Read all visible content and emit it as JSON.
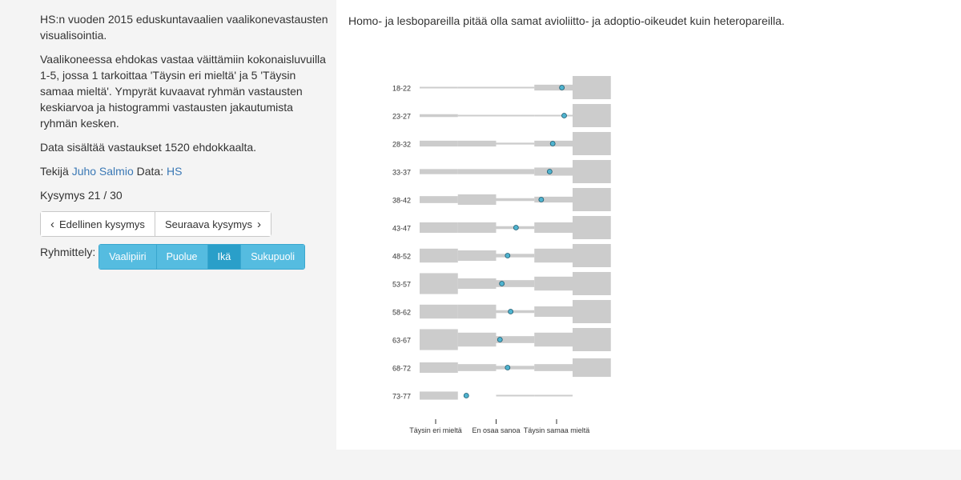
{
  "intro": {
    "title": "HS:n vuoden 2015 eduskuntavaalien vaalikonevastausten visualisointia.",
    "description": "Vaalikoneessa ehdokas vastaa väittämiin kokonaisluvuilla 1-5, jossa 1 tarkoittaa 'Täysin eri mieltä' ja 5 'Täysin samaa mieltä'. Ympyrät kuvaavat ryhmän vastausten keskiarvoa ja histogrammi vastausten jakautumista ryhmän kesken.",
    "data_note": "Data sisältää vastaukset 1520 ehdokkaalta.",
    "author_prefix": "Tekijä",
    "author_name": "Juho Salmio",
    "data_prefix": "Data:",
    "data_source": "HS"
  },
  "question_counter": "Kysymys 21 / 30",
  "nav": {
    "prev_label": "Edellinen kysymys",
    "next_label": "Seuraava kysymys"
  },
  "grouping": {
    "label": "Ryhmittely:",
    "options": [
      "Vaalipiiri",
      "Puolue",
      "Ikä",
      "Sukupuoli"
    ],
    "active": "Ikä"
  },
  "question_text": "Homo- ja lesbopareilla pitää olla samat avioliitto- ja adoptio-oikeudet kuin heteropareilla.",
  "colors": {
    "accent": "#55bce0",
    "accent_active": "#2a9fc9",
    "histogram": "#cccccc",
    "mean_dot": "#4fb3cf"
  },
  "chart_data": {
    "type": "histogram",
    "x_scale": [
      1,
      5
    ],
    "x_ticks": [
      {
        "value": 1,
        "label": "Täysin eri mieltä"
      },
      {
        "value": 3,
        "label": "En osaa sanoa"
      },
      {
        "value": 5,
        "label": "Täysin samaa mieltä"
      }
    ],
    "groups": [
      {
        "label": "18-22",
        "mean": 4.72,
        "distribution": [
          0.06,
          0.06,
          0.06,
          0.25,
          1.0
        ]
      },
      {
        "label": "23-27",
        "mean": 4.78,
        "distribution": [
          0.12,
          0.04,
          0.04,
          0.04,
          1.0
        ]
      },
      {
        "label": "28-32",
        "mean": 4.48,
        "distribution": [
          0.25,
          0.25,
          0.08,
          0.25,
          1.0
        ]
      },
      {
        "label": "33-37",
        "mean": 4.4,
        "distribution": [
          0.22,
          0.22,
          0.22,
          0.35,
          1.0
        ]
      },
      {
        "label": "38-42",
        "mean": 4.18,
        "distribution": [
          0.3,
          0.45,
          0.12,
          0.25,
          1.0
        ]
      },
      {
        "label": "43-47",
        "mean": 3.52,
        "distribution": [
          0.45,
          0.45,
          0.12,
          0.45,
          1.0
        ]
      },
      {
        "label": "48-52",
        "mean": 3.3,
        "distribution": [
          0.6,
          0.45,
          0.15,
          0.6,
          1.0
        ]
      },
      {
        "label": "53-57",
        "mean": 3.15,
        "distribution": [
          0.9,
          0.45,
          0.3,
          0.6,
          1.0
        ]
      },
      {
        "label": "58-62",
        "mean": 3.38,
        "distribution": [
          0.6,
          0.6,
          0.12,
          0.45,
          1.0
        ]
      },
      {
        "label": "63-67",
        "mean": 3.1,
        "distribution": [
          0.9,
          0.6,
          0.3,
          0.6,
          1.0
        ]
      },
      {
        "label": "68-72",
        "mean": 3.3,
        "distribution": [
          0.45,
          0.3,
          0.15,
          0.3,
          0.8
        ]
      },
      {
        "label": "73-77",
        "mean": 2.22,
        "distribution": [
          0.35,
          0.0,
          0.05,
          0.05,
          0.0
        ]
      }
    ]
  }
}
